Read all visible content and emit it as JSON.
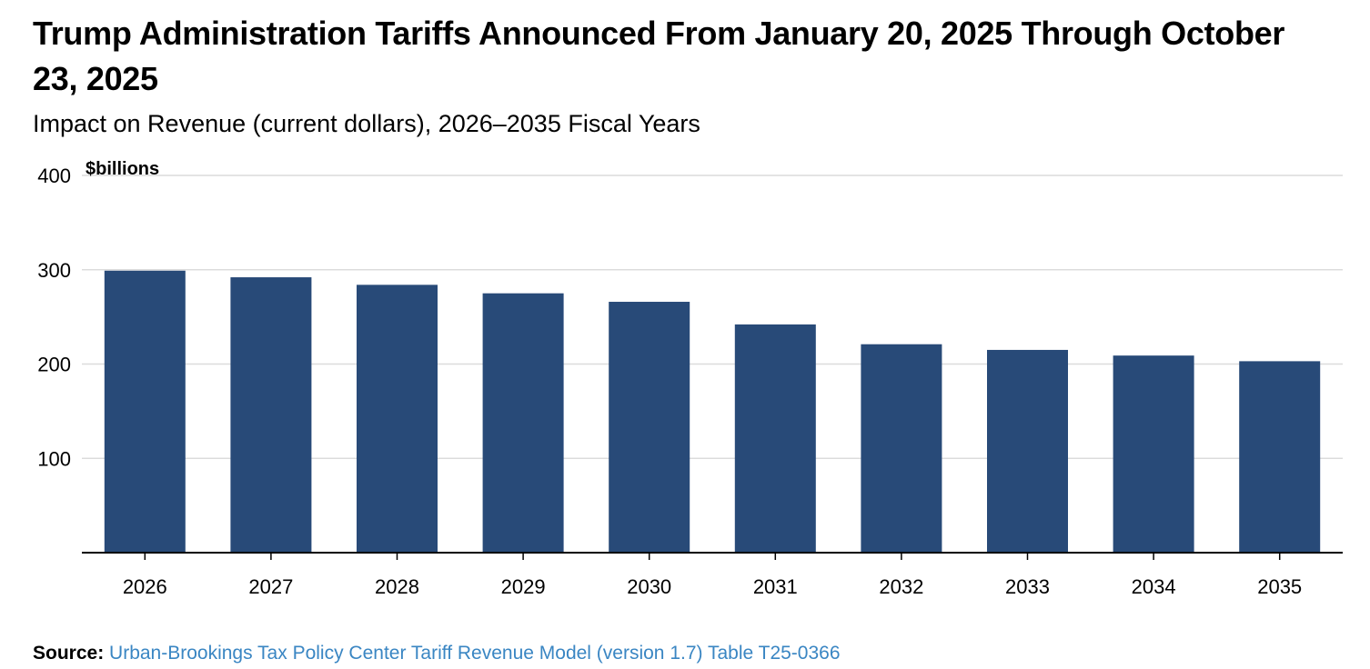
{
  "title": "Trump Administration Tariffs Announced From January 20, 2025 Through October 23, 2025",
  "subtitle": "Impact on Revenue (current dollars), 2026–2035 Fiscal Years",
  "source": {
    "label": "Source:",
    "text": "Urban-Brookings Tax Policy Center Tariff Revenue Model (version 1.7) Table T25-0366"
  },
  "colors": {
    "bar": "#284a78",
    "grid": "#dcdcdc",
    "axis": "#000000",
    "link": "#3a86c3"
  },
  "chart_data": {
    "type": "bar",
    "categories": [
      "2026",
      "2027",
      "2028",
      "2029",
      "2030",
      "2031",
      "2032",
      "2033",
      "2034",
      "2035"
    ],
    "values": [
      299,
      292,
      284,
      275,
      266,
      242,
      221,
      215,
      209,
      203
    ],
    "ylabel": "$billions",
    "ylim": [
      0,
      400
    ],
    "yticks": [
      100,
      200,
      300,
      400
    ],
    "grid": true,
    "legend": "none"
  }
}
